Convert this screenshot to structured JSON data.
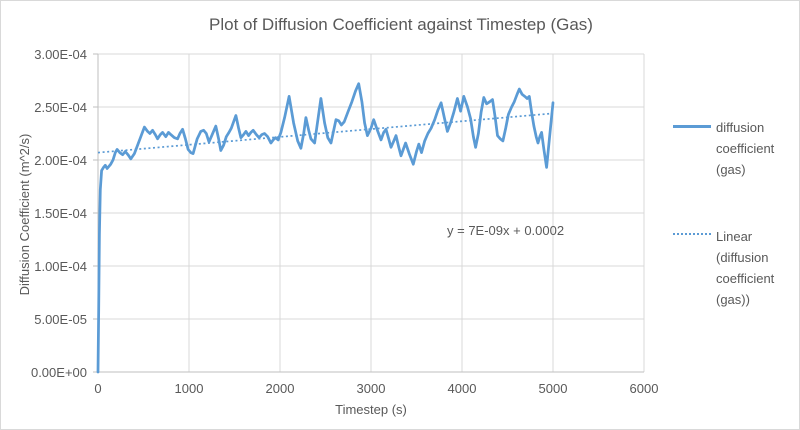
{
  "chart": {
    "title": "Plot of Diffusion Coefficient against Timestep (Gas)",
    "x_axis": {
      "label": "Timestep (s)",
      "tick_labels": [
        "0",
        "1000",
        "2000",
        "3000",
        "4000",
        "5000",
        "6000"
      ],
      "tick_values": [
        0,
        1000,
        2000,
        3000,
        4000,
        5000,
        6000
      ]
    },
    "y_axis": {
      "label": "Diffusion Coefficient (m^2/s)",
      "tick_labels": [
        "0.00E+00",
        "5.00E-05",
        "1.00E-04",
        "1.50E-04",
        "2.00E-04",
        "2.50E-04",
        "3.00E-04"
      ],
      "tick_values": [
        0,
        5e-05,
        0.0001,
        0.00015,
        0.0002,
        0.00025,
        0.0003
      ]
    },
    "legend": [
      {
        "label": "diffusion coefficient (gas)",
        "style": "solid"
      },
      {
        "label": "Linear (diffusion coefficient (gas))",
        "style": "dotted"
      }
    ],
    "annotation": "y = 7E-09x + 0.0002",
    "colors": {
      "series": "#5b9bd5",
      "trendline": "#5b9bd5",
      "gridline": "#d9d9d9",
      "axis": "#bfbfbf",
      "text": "#595959"
    }
  },
  "chart_data": {
    "type": "line",
    "title": "Plot of Diffusion Coefficient against Timestep (Gas)",
    "xlabel": "Timestep (s)",
    "ylabel": "Diffusion Coefficient (m^2/s)",
    "xlim": [
      0,
      6000
    ],
    "ylim": [
      0,
      0.0003
    ],
    "grid": true,
    "legend_position": "right",
    "series": [
      {
        "name": "diffusion coefficient (gas)",
        "points": [
          [
            0,
            0
          ],
          [
            8,
            6e-05
          ],
          [
            15,
            0.00013
          ],
          [
            25,
            0.000172
          ],
          [
            40,
            0.00019
          ],
          [
            60,
            0.000193
          ],
          [
            80,
            0.000195
          ],
          [
            100,
            0.000192
          ],
          [
            120,
            0.000194
          ],
          [
            140,
            0.000196
          ],
          [
            165,
            0.0002
          ],
          [
            190,
            0.000207
          ],
          [
            210,
            0.00021
          ],
          [
            240,
            0.000207
          ],
          [
            270,
            0.000205
          ],
          [
            300,
            0.000208
          ],
          [
            330,
            0.000205
          ],
          [
            360,
            0.000201
          ],
          [
            400,
            0.000206
          ],
          [
            440,
            0.000215
          ],
          [
            470,
            0.000222
          ],
          [
            510,
            0.000231
          ],
          [
            545,
            0.000227
          ],
          [
            570,
            0.000225
          ],
          [
            600,
            0.000228
          ],
          [
            630,
            0.000224
          ],
          [
            655,
            0.00022
          ],
          [
            685,
            0.000224
          ],
          [
            710,
            0.000226
          ],
          [
            745,
            0.000222
          ],
          [
            775,
            0.000226
          ],
          [
            800,
            0.000224
          ],
          [
            840,
            0.000221
          ],
          [
            875,
            0.00022
          ],
          [
            900,
            0.000225
          ],
          [
            930,
            0.000229
          ],
          [
            960,
            0.00022
          ],
          [
            990,
            0.00021
          ],
          [
            1020,
            0.000207
          ],
          [
            1045,
            0.000206
          ],
          [
            1090,
            0.00022
          ],
          [
            1130,
            0.000227
          ],
          [
            1160,
            0.000228
          ],
          [
            1190,
            0.000225
          ],
          [
            1220,
            0.000217
          ],
          [
            1255,
            0.000224
          ],
          [
            1295,
            0.000232
          ],
          [
            1325,
            0.00022
          ],
          [
            1350,
            0.000209
          ],
          [
            1380,
            0.000214
          ],
          [
            1410,
            0.000222
          ],
          [
            1440,
            0.000226
          ],
          [
            1465,
            0.00023
          ],
          [
            1490,
            0.000236
          ],
          [
            1515,
            0.000242
          ],
          [
            1545,
            0.00023
          ],
          [
            1570,
            0.000221
          ],
          [
            1600,
            0.000224
          ],
          [
            1625,
            0.000227
          ],
          [
            1655,
            0.000223
          ],
          [
            1680,
            0.000226
          ],
          [
            1705,
            0.000228
          ],
          [
            1740,
            0.000224
          ],
          [
            1770,
            0.000221
          ],
          [
            1800,
            0.000224
          ],
          [
            1830,
            0.000225
          ],
          [
            1865,
            0.000222
          ],
          [
            1900,
            0.000216
          ],
          [
            1925,
            0.000219
          ],
          [
            1950,
            0.000221
          ],
          [
            1980,
            0.000219
          ],
          [
            2010,
            0.000226
          ],
          [
            2050,
            0.00024
          ],
          [
            2100,
            0.00026
          ],
          [
            2150,
            0.000235
          ],
          [
            2195,
            0.000218
          ],
          [
            2230,
            0.000211
          ],
          [
            2260,
            0.000225
          ],
          [
            2285,
            0.00024
          ],
          [
            2315,
            0.000228
          ],
          [
            2340,
            0.00022
          ],
          [
            2380,
            0.000216
          ],
          [
            2420,
            0.00024
          ],
          [
            2450,
            0.000258
          ],
          [
            2490,
            0.000235
          ],
          [
            2525,
            0.000221
          ],
          [
            2560,
            0.000216
          ],
          [
            2590,
            0.000228
          ],
          [
            2615,
            0.000238
          ],
          [
            2645,
            0.000237
          ],
          [
            2675,
            0.000233
          ],
          [
            2705,
            0.000236
          ],
          [
            2745,
            0.000245
          ],
          [
            2790,
            0.000255
          ],
          [
            2830,
            0.000265
          ],
          [
            2865,
            0.000272
          ],
          [
            2900,
            0.000255
          ],
          [
            2930,
            0.000235
          ],
          [
            2960,
            0.000223
          ],
          [
            3000,
            0.00023
          ],
          [
            3030,
            0.000238
          ],
          [
            3070,
            0.000228
          ],
          [
            3110,
            0.000219
          ],
          [
            3140,
            0.000226
          ],
          [
            3165,
            0.000229
          ],
          [
            3195,
            0.00022
          ],
          [
            3220,
            0.000212
          ],
          [
            3250,
            0.000218
          ],
          [
            3275,
            0.000223
          ],
          [
            3305,
            0.000212
          ],
          [
            3330,
            0.000204
          ],
          [
            3355,
            0.00021
          ],
          [
            3380,
            0.000216
          ],
          [
            3420,
            0.000206
          ],
          [
            3465,
            0.000196
          ],
          [
            3500,
            0.000208
          ],
          [
            3525,
            0.000215
          ],
          [
            3555,
            0.000207
          ],
          [
            3590,
            0.000218
          ],
          [
            3625,
            0.000225
          ],
          [
            3660,
            0.00023
          ],
          [
            3700,
            0.000238
          ],
          [
            3735,
            0.000247
          ],
          [
            3770,
            0.000254
          ],
          [
            3805,
            0.00024
          ],
          [
            3840,
            0.000227
          ],
          [
            3875,
            0.000235
          ],
          [
            3910,
            0.000245
          ],
          [
            3950,
            0.000258
          ],
          [
            3985,
            0.000246
          ],
          [
            4020,
            0.00026
          ],
          [
            4060,
            0.00025
          ],
          [
            4095,
            0.000239
          ],
          [
            4125,
            0.000222
          ],
          [
            4150,
            0.000212
          ],
          [
            4180,
            0.000225
          ],
          [
            4210,
            0.000245
          ],
          [
            4240,
            0.000259
          ],
          [
            4270,
            0.000253
          ],
          [
            4305,
            0.000255
          ],
          [
            4335,
            0.000257
          ],
          [
            4365,
            0.00024
          ],
          [
            4390,
            0.000223
          ],
          [
            4420,
            0.00022
          ],
          [
            4450,
            0.000218
          ],
          [
            4480,
            0.00023
          ],
          [
            4510,
            0.000243
          ],
          [
            4545,
            0.00025
          ],
          [
            4575,
            0.000255
          ],
          [
            4605,
            0.000262
          ],
          [
            4630,
            0.000267
          ],
          [
            4660,
            0.000262
          ],
          [
            4690,
            0.00026
          ],
          [
            4715,
            0.000258
          ],
          [
            4740,
            0.00026
          ],
          [
            4765,
            0.000245
          ],
          [
            4790,
            0.000232
          ],
          [
            4815,
            0.000222
          ],
          [
            4835,
            0.000216
          ],
          [
            4855,
            0.000222
          ],
          [
            4875,
            0.000226
          ],
          [
            4900,
            0.00021
          ],
          [
            4930,
            0.000193
          ],
          [
            4960,
            0.00022
          ],
          [
            5000,
            0.000254
          ]
        ]
      }
    ],
    "trendline": {
      "name": "Linear (diffusion coefficient (gas))",
      "equation": "y = 7E-09x + 0.0002",
      "x": [
        0,
        5000
      ],
      "y": [
        0.000207,
        0.000244
      ]
    }
  }
}
